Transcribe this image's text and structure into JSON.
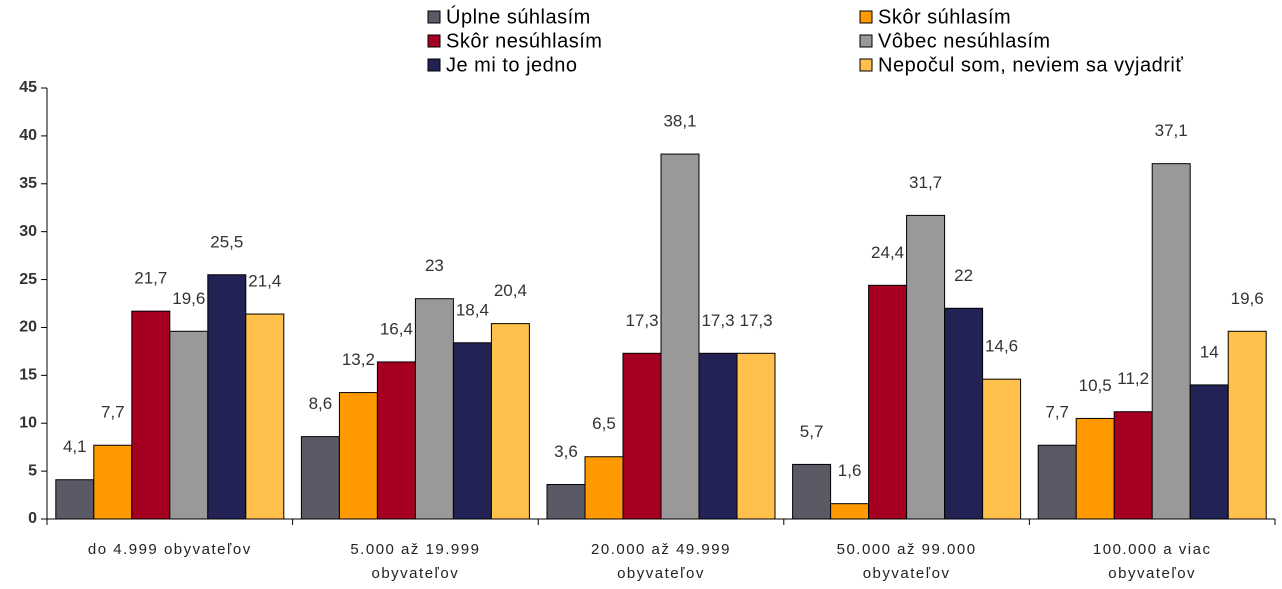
{
  "chart_data": {
    "type": "bar",
    "categories": [
      "do 4.999 obyvateľov",
      "5.000 až 19.999 obyvateľov",
      "20.000 až 49.999 obyvateľov",
      "50.000 až 99.000 obyvateľov",
      "100.000 a viac obyvateľov"
    ],
    "series": [
      {
        "name": "Úplne súhlasím",
        "color": "#5a5a66",
        "values": [
          4.1,
          8.6,
          3.6,
          5.7,
          7.7
        ],
        "value_labels": [
          "4,1",
          "8,6",
          "3,6",
          "5,7",
          "7,7"
        ]
      },
      {
        "name": "Skôr súhlasím",
        "color": "#ff9900",
        "values": [
          7.7,
          13.2,
          6.5,
          1.6,
          10.5
        ],
        "value_labels": [
          "7,7",
          "13,2",
          "6,5",
          "1,6",
          "10,5"
        ]
      },
      {
        "name": "Skôr nesúhlasím",
        "color": "#a50021",
        "values": [
          21.7,
          16.4,
          17.3,
          24.4,
          11.2
        ],
        "value_labels": [
          "21,7",
          "16,4",
          "17,3",
          "24,4",
          "11,2"
        ]
      },
      {
        "name": "Vôbec nesúhlasím",
        "color": "#999999",
        "values": [
          19.6,
          23,
          38.1,
          31.7,
          37.1
        ],
        "value_labels": [
          "19,6",
          "23",
          "38,1",
          "31,7",
          "37,1"
        ]
      },
      {
        "name": "Je mi to jedno",
        "color": "#222255",
        "values": [
          25.5,
          18.4,
          17.3,
          22,
          14
        ],
        "value_labels": [
          "25,5",
          "18,4",
          "17,3",
          "22",
          "14"
        ]
      },
      {
        "name": "Nepočul som, neviem sa vyjadriť",
        "color": "#ffc04c",
        "values": [
          21.4,
          20.4,
          17.3,
          14.6,
          19.6
        ],
        "value_labels": [
          "21,4",
          "20,4",
          "17,3",
          "14,6",
          "19,6"
        ]
      }
    ],
    "ylim": [
      0,
      45
    ],
    "yticks": [
      0,
      5,
      10,
      15,
      20,
      25,
      30,
      35,
      40,
      45
    ],
    "grid": false,
    "legend": "top"
  }
}
